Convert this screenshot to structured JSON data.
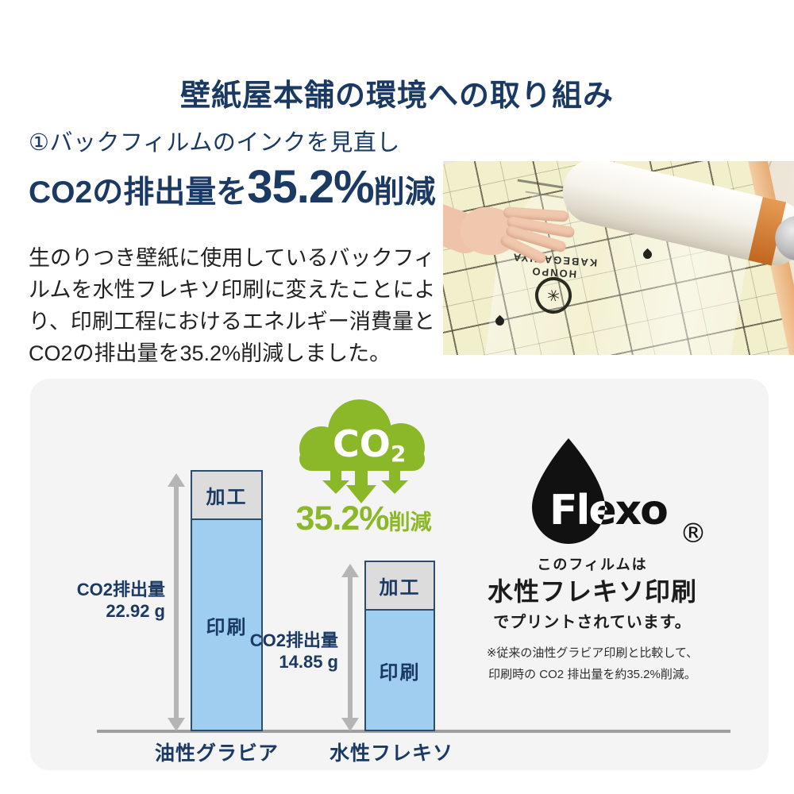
{
  "page": {
    "title": "壁紙屋本舗の環境への取り組み"
  },
  "intro": {
    "heading": "①バックフィルムのインクを見直し",
    "co2_statement": {
      "prefix": "CO2の排出量を",
      "percent": "35.2%",
      "suffix": "削減"
    },
    "body": "生のりつき壁紙に使用しているバックフィルムを水性フレキソ印刷に変えたことにより、印刷工程におけるエネルギー消費量とCO2の排出量を35.2%削減しました。"
  },
  "photo": {
    "brand_line1": "KABEGAMIYA",
    "brand_line2": "HONPO"
  },
  "chart_data": {
    "type": "bar",
    "stacked": true,
    "categories": [
      "油性グラビア",
      "水性フレキソ"
    ],
    "series": [
      {
        "name": "印刷",
        "values": [
          18.62,
          10.55
        ],
        "color": "#9fcef1",
        "estimated": true
      },
      {
        "name": "加工",
        "values": [
          4.3,
          4.3
        ],
        "color": "#dcdcdc",
        "estimated": true
      }
    ],
    "totals": [
      {
        "label": "CO2排出量",
        "value": "22.92 g",
        "grams": 22.92
      },
      {
        "label": "CO2排出量",
        "value": "14.85 g",
        "grams": 14.85
      }
    ],
    "unit": "g",
    "ylim": [
      0,
      25
    ],
    "grid": false,
    "legend": "none"
  },
  "badge": {
    "gas_main": "CO",
    "gas_sub": "2",
    "percent": "35.2%",
    "label": "削減"
  },
  "flexo": {
    "brand": "Flexo",
    "registered": "®",
    "line1": "このフィルムは",
    "line2": "水性フレキソ印刷",
    "line3": "でプリントされています。",
    "note1": "※従来の油性グラビア印刷と比較して、",
    "note2": "印刷時の CO2 排出量を約35.2%削減。"
  },
  "colors": {
    "navy": "#1b3a63",
    "green": "#8bb829",
    "bar_blue": "#9fcef1",
    "bar_gray": "#dcdcdc",
    "bar_border": "#2b4c6d",
    "panel_bg": "#f4f4f4",
    "axis_gray": "#9e9e9e",
    "arrow_gray": "#b5b5b5"
  }
}
